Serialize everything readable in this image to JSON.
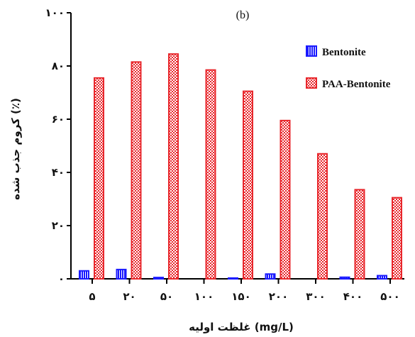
{
  "chart_data": {
    "type": "bar",
    "panel_label": "(b)",
    "ylabel": "کروم جذب شده (٪)",
    "xlabel": "غلظت اولیه (mg/L)",
    "categories": [
      "۵",
      "۲۰",
      "۵۰",
      "۱۰۰",
      "۱۵۰",
      "۲۰۰",
      "۳۰۰",
      "۴۰۰",
      "۵۰۰"
    ],
    "ylim": [
      0,
      100
    ],
    "yticks": [
      0,
      20,
      40,
      60,
      80,
      100
    ],
    "ytick_labels": [
      "۰",
      "۲۰",
      "۴۰",
      "۶۰",
      "۸۰",
      "۱۰۰"
    ],
    "legend_position": "top-right",
    "grid": false,
    "series": [
      {
        "name": "Bentonite",
        "color": "#1a1aff",
        "pattern": "vertical-stripes",
        "values": [
          3,
          3.5,
          0.5,
          0,
          0.3,
          1.8,
          0,
          0.6,
          1.2
        ]
      },
      {
        "name": "PAA-Bentonite",
        "color": "#e8272c",
        "pattern": "checkerboard",
        "values": [
          75.5,
          81.5,
          84.5,
          78.5,
          70.5,
          59.5,
          47,
          33.5,
          30.5
        ]
      }
    ]
  }
}
